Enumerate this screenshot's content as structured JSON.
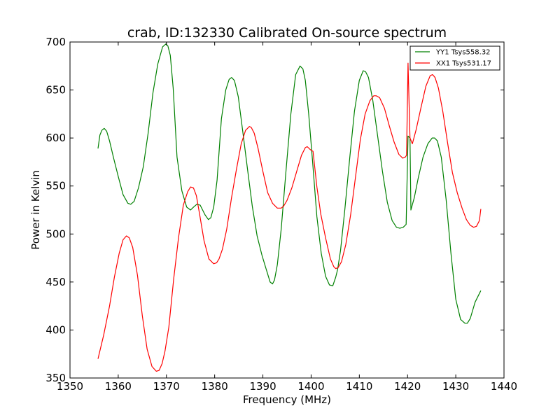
{
  "chart_data": {
    "type": "line",
    "title": "crab, ID:132330 Calibrated On-source spectrum",
    "xlabel": "Frequency (MHz)",
    "ylabel": "Power in Kelvin",
    "xlim": [
      1350,
      1440
    ],
    "ylim": [
      350,
      700
    ],
    "xticks": [
      1350,
      1360,
      1370,
      1380,
      1390,
      1400,
      1410,
      1420,
      1430,
      1440
    ],
    "yticks": [
      350,
      400,
      450,
      500,
      550,
      600,
      650,
      700
    ],
    "grid": false,
    "legend_position": "top-right",
    "series": [
      {
        "name": "YY1 Tsys558.32",
        "color": "#008000",
        "x": [
          1355.8,
          1356.2,
          1356.6,
          1357.1,
          1357.6,
          1358.2,
          1359.0,
          1360.0,
          1361.0,
          1362.0,
          1362.6,
          1363.3,
          1364.2,
          1365.2,
          1366.2,
          1367.2,
          1368.2,
          1369.2,
          1369.9,
          1370.3,
          1370.8,
          1371.4,
          1372.2,
          1373.2,
          1374.2,
          1375.0,
          1375.6,
          1376.3,
          1377.0,
          1378.0,
          1378.7,
          1379.2,
          1379.8,
          1380.5,
          1381.4,
          1382.3,
          1383.0,
          1383.5,
          1384.1,
          1384.9,
          1385.8,
          1386.8,
          1387.8,
          1388.8,
          1389.8,
          1390.7,
          1391.5,
          1392.0,
          1392.4,
          1393.0,
          1393.8,
          1394.8,
          1395.8,
          1396.8,
          1397.7,
          1398.3,
          1398.8,
          1399.5,
          1400.3,
          1401.2,
          1402.1,
          1403.0,
          1403.8,
          1404.5,
          1405.1,
          1405.5,
          1406.1,
          1407.0,
          1408.0,
          1409.0,
          1410.0,
          1410.8,
          1411.3,
          1411.9,
          1412.8,
          1413.8,
          1414.8,
          1415.8,
          1416.8,
          1417.7,
          1418.4,
          1419.1,
          1419.7,
          1420.1,
          1420.5,
          1420.7,
          1421.4,
          1422.2,
          1423.2,
          1424.2,
          1425.1,
          1425.6,
          1426.2,
          1427.0,
          1428.0,
          1429.0,
          1430.0,
          1431.0,
          1431.9,
          1432.4,
          1433.0,
          1434.0,
          1435.2
        ],
        "y": [
          589,
          603,
          608,
          610,
          607,
          597,
          580,
          560,
          541,
          532,
          531,
          534,
          548,
          570,
          605,
          647,
          677,
          695,
          698,
          696,
          686,
          652,
          580,
          545,
          528,
          525,
          528,
          531,
          530,
          520,
          515,
          517,
          528,
          556,
          620,
          650,
          661,
          663,
          660,
          643,
          608,
          568,
          529,
          498,
          478,
          463,
          450,
          448,
          452,
          468,
          505,
          566,
          625,
          666,
          675,
          672,
          660,
          625,
          576,
          518,
          480,
          456,
          447,
          446,
          455,
          463,
          483,
          526,
          579,
          628,
          660,
          670,
          669,
          663,
          639,
          602,
          565,
          533,
          514,
          507,
          506,
          507,
          510,
          602,
          600,
          525,
          538,
          558,
          580,
          594,
          600,
          600,
          597,
          580,
          536,
          480,
          432,
          411,
          407,
          407,
          412,
          429,
          441
        ]
      },
      {
        "name": "XX1 Tsys531.17",
        "color": "#ff0000",
        "x": [
          1355.8,
          1357.0,
          1358.2,
          1359.2,
          1360.2,
          1361.0,
          1361.7,
          1362.3,
          1363.0,
          1364.0,
          1365.0,
          1366.0,
          1367.0,
          1367.9,
          1368.5,
          1369.1,
          1369.7,
          1370.5,
          1371.5,
          1372.5,
          1373.5,
          1374.4,
          1375.0,
          1375.6,
          1376.2,
          1376.9,
          1377.8,
          1378.8,
          1379.8,
          1380.4,
          1380.9,
          1381.6,
          1382.5,
          1383.5,
          1384.5,
          1385.5,
          1386.4,
          1387.2,
          1387.6,
          1388.2,
          1389.0,
          1390.0,
          1391.0,
          1392.0,
          1393.0,
          1393.8,
          1394.3,
          1395.0,
          1396.0,
          1397.0,
          1398.0,
          1398.8,
          1399.2,
          1399.8,
          1400.4,
          1401.2,
          1402.0,
          1403.0,
          1404.0,
          1404.7,
          1405.1,
          1405.6,
          1406.3,
          1407.2,
          1408.2,
          1409.2,
          1410.2,
          1411.2,
          1412.2,
          1413.0,
          1413.5,
          1414.2,
          1415.2,
          1416.2,
          1417.2,
          1418.2,
          1419.0,
          1419.5,
          1419.8,
          1420.1,
          1420.5,
          1421.0,
          1421.8,
          1422.8,
          1423.8,
          1424.7,
          1425.2,
          1425.7,
          1426.4,
          1427.3,
          1428.3,
          1429.3,
          1430.3,
          1431.3,
          1432.2,
          1433.0,
          1433.7,
          1434.3,
          1434.9,
          1435.2
        ],
        "y": [
          370,
          395,
          425,
          455,
          480,
          494,
          498,
          496,
          486,
          457,
          415,
          380,
          362,
          357,
          358,
          365,
          378,
          403,
          453,
          496,
          530,
          544,
          549,
          548,
          540,
          520,
          493,
          474,
          469,
          470,
          474,
          484,
          505,
          538,
          567,
          594,
          608,
          612,
          611,
          605,
          589,
          565,
          543,
          532,
          527,
          527,
          529,
          535,
          548,
          565,
          582,
          590,
          591,
          588,
          586,
          549,
          521,
          496,
          474,
          466,
          464,
          465,
          471,
          489,
          520,
          559,
          598,
          625,
          639,
          644,
          644,
          642,
          631,
          613,
          596,
          583,
          579,
          580,
          582,
          678,
          600,
          594,
          609,
          632,
          654,
          665,
          666,
          663,
          652,
          628,
          595,
          564,
          543,
          527,
          515,
          509,
          507,
          508,
          514,
          526
        ]
      }
    ]
  }
}
